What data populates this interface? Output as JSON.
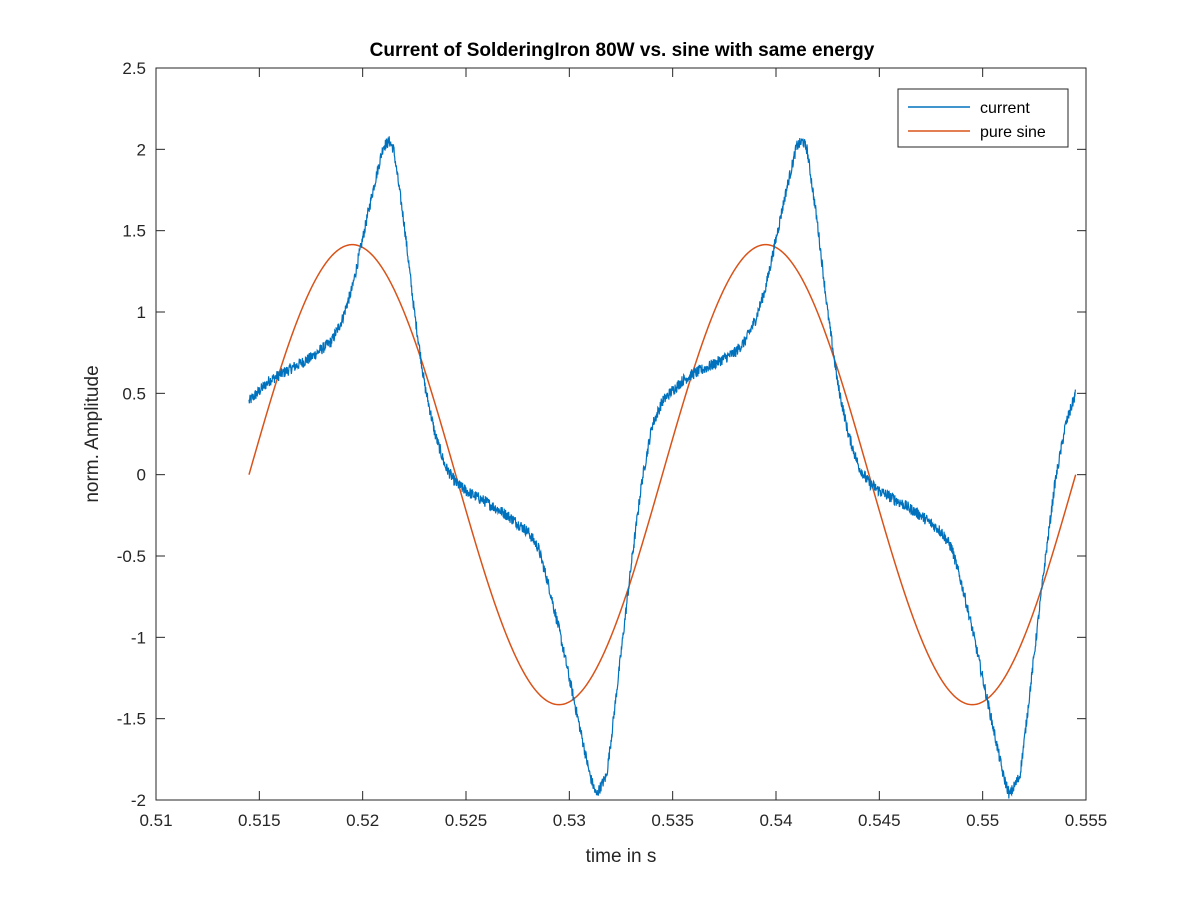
{
  "chart_data": {
    "type": "line",
    "title": "Current of SolderingIron 80W vs. sine with same energy",
    "xlabel": "time in s",
    "ylabel": "norm. Amplitude",
    "xlim": [
      0.51,
      0.555
    ],
    "ylim": [
      -2,
      2.5
    ],
    "xticks": [
      0.51,
      0.515,
      0.52,
      0.525,
      0.53,
      0.535,
      0.54,
      0.545,
      0.55,
      0.555
    ],
    "xtick_labels": [
      "0.51",
      "0.515",
      "0.52",
      "0.525",
      "0.53",
      "0.535",
      "0.54",
      "0.545",
      "0.55",
      "0.555"
    ],
    "yticks": [
      -2,
      -1.5,
      -1,
      -0.5,
      0,
      0.5,
      1,
      1.5,
      2,
      2.5
    ],
    "ytick_labels": [
      "-2",
      "-1.5",
      "-1",
      "-0.5",
      "0",
      "0.5",
      "1",
      "1.5",
      "2",
      "2.5"
    ],
    "grid": false,
    "legend_position": "top-right",
    "series": [
      {
        "name": "current",
        "color": "#0072BD",
        "x": [
          0.5145,
          0.5155,
          0.5165,
          0.5175,
          0.5185,
          0.519,
          0.5195,
          0.52,
          0.5205,
          0.521,
          0.5213,
          0.5215,
          0.522,
          0.5225,
          0.523,
          0.5235,
          0.524,
          0.5245,
          0.525,
          0.526,
          0.527,
          0.528,
          0.5285,
          0.529,
          0.5295,
          0.53,
          0.5305,
          0.531,
          0.5313,
          0.5318,
          0.532,
          0.5325,
          0.533,
          0.5335,
          0.534,
          0.5345,
          0.535,
          0.5355,
          0.536,
          0.537,
          0.538,
          0.5385,
          0.539,
          0.5395,
          0.54,
          0.5405,
          0.541,
          0.5413,
          0.5415,
          0.542,
          0.5425,
          0.543,
          0.5435,
          0.544,
          0.5445,
          0.545,
          0.546,
          0.547,
          0.548,
          0.5485,
          0.549,
          0.5495,
          0.55,
          0.5505,
          0.551,
          0.5513,
          0.5518,
          0.552,
          0.5525,
          0.553,
          0.5535,
          0.554,
          0.5545
        ],
        "y": [
          0.45,
          0.58,
          0.65,
          0.72,
          0.82,
          0.95,
          1.15,
          1.45,
          1.75,
          2.02,
          2.05,
          2.0,
          1.55,
          1.0,
          0.55,
          0.25,
          0.05,
          -0.05,
          -0.1,
          -0.17,
          -0.25,
          -0.35,
          -0.45,
          -0.68,
          -0.95,
          -1.25,
          -1.55,
          -1.85,
          -1.97,
          -1.85,
          -1.65,
          -1.1,
          -0.55,
          -0.05,
          0.3,
          0.45,
          0.52,
          0.58,
          0.62,
          0.68,
          0.75,
          0.82,
          0.95,
          1.15,
          1.45,
          1.75,
          2.02,
          2.05,
          2.0,
          1.55,
          1.0,
          0.55,
          0.25,
          0.05,
          -0.05,
          -0.1,
          -0.17,
          -0.25,
          -0.35,
          -0.45,
          -0.68,
          -0.95,
          -1.25,
          -1.55,
          -1.85,
          -1.97,
          -1.85,
          -1.65,
          -1.1,
          -0.55,
          -0.05,
          0.3,
          0.5
        ]
      },
      {
        "name": "pure sine",
        "color": "#D95319",
        "amplitude": 1.414,
        "frequency_hz": 50,
        "phase_start": 0.5145,
        "x_range": [
          0.5145,
          0.5545
        ]
      }
    ]
  }
}
